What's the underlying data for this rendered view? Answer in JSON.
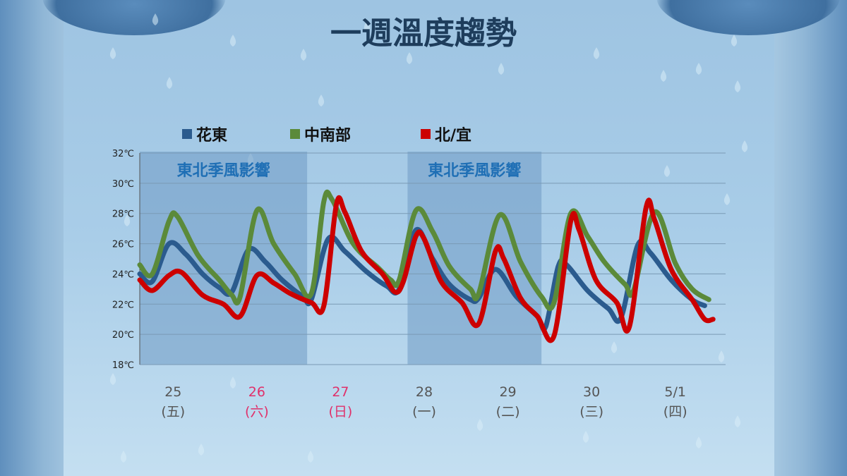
{
  "title": "一週溫度趨勢",
  "chart_data": {
    "type": "line",
    "title": "一週溫度趨勢",
    "ylim": [
      18,
      32
    ],
    "yticks": [
      "18℃",
      "20℃",
      "22℃",
      "24℃",
      "26℃",
      "28℃",
      "30℃",
      "32℃"
    ],
    "grid": true,
    "legend_position": "top",
    "days": [
      {
        "date": "25",
        "weekday": "(五)",
        "color": "#555555"
      },
      {
        "date": "26",
        "weekday": "(六)",
        "color": "#e0306a"
      },
      {
        "date": "27",
        "weekday": "(日)",
        "color": "#e0306a"
      },
      {
        "date": "28",
        "weekday": "(一)",
        "color": "#555555"
      },
      {
        "date": "29",
        "weekday": "(二)",
        "color": "#555555"
      },
      {
        "date": "30",
        "weekday": "(三)",
        "color": "#555555"
      },
      {
        "date": "5/1",
        "weekday": "(四)",
        "color": "#555555"
      }
    ],
    "bands": [
      {
        "label": "東北季風影響",
        "start": 0,
        "end": 2.0
      },
      {
        "label": "東北季風影響",
        "start": 3.2,
        "end": 4.8
      }
    ],
    "series": [
      {
        "name": "花東",
        "color": "#2b5b8e",
        "points": [
          [
            0,
            24.0
          ],
          [
            0.15,
            23.5
          ],
          [
            0.35,
            26.0
          ],
          [
            0.55,
            25.3
          ],
          [
            0.75,
            24.0
          ],
          [
            0.95,
            23.1
          ],
          [
            1.1,
            22.8
          ],
          [
            1.3,
            25.6
          ],
          [
            1.5,
            24.8
          ],
          [
            1.7,
            23.6
          ],
          [
            1.95,
            22.5
          ],
          [
            2.05,
            22.3
          ],
          [
            2.25,
            26.3
          ],
          [
            2.45,
            25.5
          ],
          [
            2.7,
            24.2
          ],
          [
            2.95,
            23.2
          ],
          [
            3.1,
            23.0
          ],
          [
            3.3,
            26.9
          ],
          [
            3.5,
            25.0
          ],
          [
            3.7,
            23.3
          ],
          [
            3.95,
            22.3
          ],
          [
            4.05,
            22.4
          ],
          [
            4.25,
            24.3
          ],
          [
            4.5,
            22.5
          ],
          [
            4.75,
            21.2
          ],
          [
            4.85,
            20.5
          ],
          [
            5.0,
            24.5
          ],
          [
            5.1,
            24.6
          ],
          [
            5.35,
            22.9
          ],
          [
            5.6,
            21.7
          ],
          [
            5.75,
            21.1
          ],
          [
            5.95,
            25.9
          ],
          [
            6.1,
            25.4
          ],
          [
            6.35,
            23.6
          ],
          [
            6.6,
            22.3
          ],
          [
            6.75,
            21.9
          ]
        ]
      },
      {
        "name": "中南部",
        "color": "#5b8a3a",
        "points": [
          [
            0,
            24.6
          ],
          [
            0.15,
            24.0
          ],
          [
            0.35,
            27.5
          ],
          [
            0.45,
            27.8
          ],
          [
            0.7,
            25.2
          ],
          [
            0.95,
            23.6
          ],
          [
            1.1,
            22.6
          ],
          [
            1.2,
            22.5
          ],
          [
            1.4,
            28.2
          ],
          [
            1.6,
            26.0
          ],
          [
            1.85,
            24.0
          ],
          [
            2.05,
            22.7
          ],
          [
            2.2,
            28.8
          ],
          [
            2.3,
            28.9
          ],
          [
            2.55,
            26.0
          ],
          [
            2.85,
            24.4
          ],
          [
            3.0,
            23.6
          ],
          [
            3.1,
            23.6
          ],
          [
            3.3,
            28.2
          ],
          [
            3.5,
            26.8
          ],
          [
            3.7,
            24.5
          ],
          [
            3.95,
            23.0
          ],
          [
            4.05,
            22.7
          ],
          [
            4.3,
            27.9
          ],
          [
            4.55,
            24.8
          ],
          [
            4.8,
            22.5
          ],
          [
            4.95,
            22.1
          ],
          [
            5.15,
            28.0
          ],
          [
            5.35,
            26.5
          ],
          [
            5.55,
            24.8
          ],
          [
            5.8,
            23.3
          ],
          [
            5.9,
            22.9
          ],
          [
            6.15,
            28.1
          ],
          [
            6.4,
            24.7
          ],
          [
            6.6,
            23.0
          ],
          [
            6.8,
            22.3
          ]
        ]
      },
      {
        "name": "北/宜",
        "color": "#cc0000",
        "points": [
          [
            0,
            23.6
          ],
          [
            0.15,
            22.9
          ],
          [
            0.35,
            23.9
          ],
          [
            0.5,
            24.1
          ],
          [
            0.75,
            22.6
          ],
          [
            1.0,
            22.0
          ],
          [
            1.2,
            21.2
          ],
          [
            1.4,
            23.9
          ],
          [
            1.6,
            23.4
          ],
          [
            1.8,
            22.7
          ],
          [
            2.05,
            22.1
          ],
          [
            2.2,
            21.9
          ],
          [
            2.35,
            28.6
          ],
          [
            2.45,
            28.1
          ],
          [
            2.65,
            25.5
          ],
          [
            2.9,
            24.0
          ],
          [
            3.05,
            22.8
          ],
          [
            3.15,
            23.5
          ],
          [
            3.3,
            26.5
          ],
          [
            3.4,
            26.3
          ],
          [
            3.6,
            23.5
          ],
          [
            3.85,
            22.1
          ],
          [
            4.05,
            20.7
          ],
          [
            4.25,
            25.5
          ],
          [
            4.35,
            25.0
          ],
          [
            4.55,
            22.4
          ],
          [
            4.75,
            21.2
          ],
          [
            4.95,
            19.9
          ],
          [
            5.15,
            27.5
          ],
          [
            5.25,
            26.9
          ],
          [
            5.45,
            23.6
          ],
          [
            5.7,
            22.1
          ],
          [
            5.85,
            20.5
          ],
          [
            6.05,
            28.4
          ],
          [
            6.15,
            27.6
          ],
          [
            6.35,
            24.3
          ],
          [
            6.6,
            22.3
          ],
          [
            6.75,
            21.0
          ],
          [
            6.85,
            21.0
          ]
        ]
      }
    ]
  },
  "decor": {
    "panel_color": "#a9cde8",
    "band_color": "#6f9ac4",
    "title_color": "#1e3d5c"
  }
}
